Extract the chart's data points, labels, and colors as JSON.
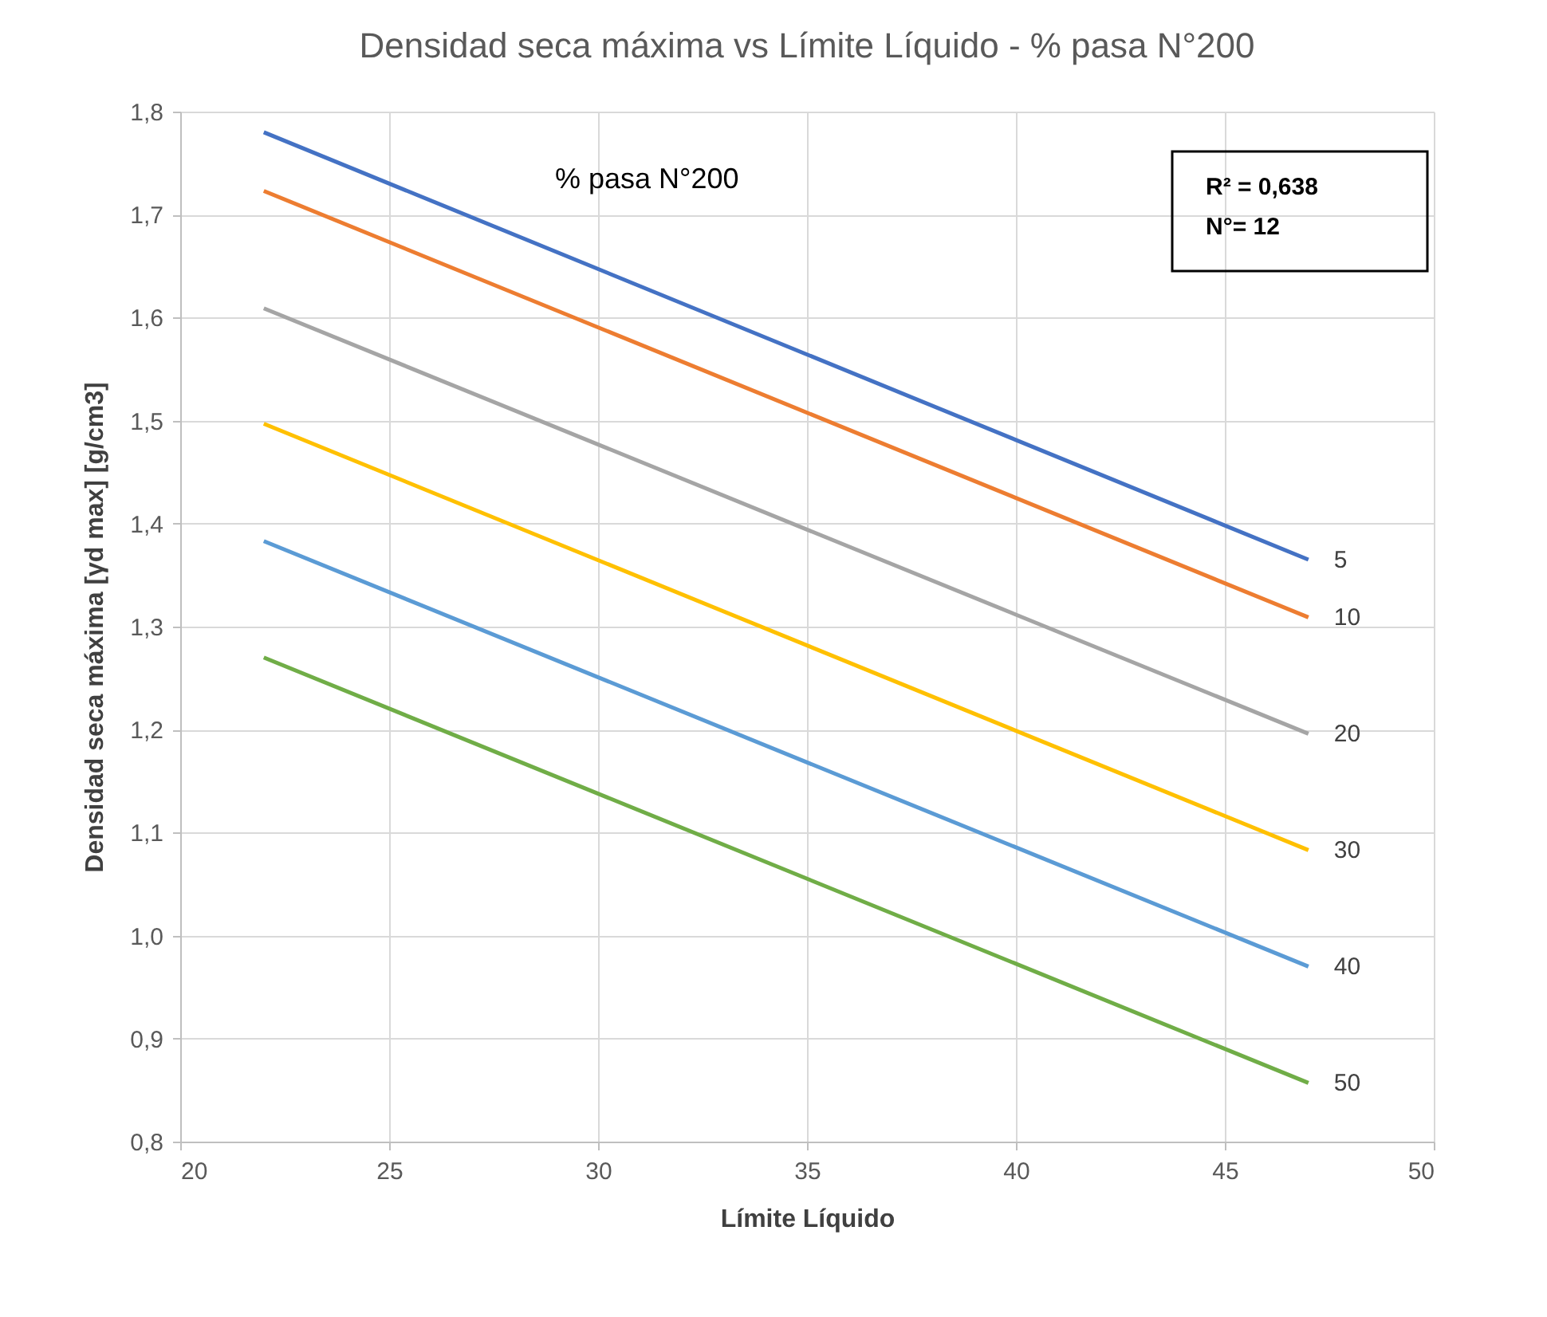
{
  "chart_data": {
    "type": "line",
    "title": "Densidad seca máxima vs Límite Líquido - % pasa N°200",
    "xlabel": "Límite Líquido",
    "ylabel": "Densidad seca máxima [γd max] [g/cm3]",
    "x": [
      22,
      47
    ],
    "series": [
      {
        "name": "5",
        "color": "#4472c4",
        "values": [
          1.78,
          1.365
        ]
      },
      {
        "name": "10",
        "color": "#ed7d31",
        "values": [
          1.723,
          1.309
        ]
      },
      {
        "name": "20",
        "color": "#a5a5a5",
        "values": [
          1.609,
          1.196
        ]
      },
      {
        "name": "30",
        "color": "#ffc000",
        "values": [
          1.497,
          1.083
        ]
      },
      {
        "name": "40",
        "color": "#5b9bd5",
        "values": [
          1.383,
          0.97
        ]
      },
      {
        "name": "50",
        "color": "#70ad47",
        "values": [
          1.27,
          0.857
        ]
      }
    ],
    "xlim": [
      20,
      50
    ],
    "xticks": [
      20,
      25,
      30,
      35,
      40,
      45,
      50
    ],
    "ylim": [
      0.8,
      1.8
    ],
    "yticks": [
      {
        "value": 0.8,
        "label": "0,8"
      },
      {
        "value": 0.9,
        "label": "0,9"
      },
      {
        "value": 1.0,
        "label": "1,0"
      },
      {
        "value": 1.1,
        "label": "1,1"
      },
      {
        "value": 1.2,
        "label": "1,2"
      },
      {
        "value": 1.3,
        "label": "1,3"
      },
      {
        "value": 1.4,
        "label": "1,4"
      },
      {
        "value": 1.5,
        "label": "1,5"
      },
      {
        "value": 1.6,
        "label": "1,6"
      },
      {
        "value": 1.7,
        "label": "1,7"
      },
      {
        "value": 1.8,
        "label": "1,8"
      }
    ],
    "annotations": [
      "% pasa N°200",
      "R² = 0,638",
      "N°= 12"
    ],
    "grid": true,
    "legend": false,
    "marker": "none",
    "line_style": "solid"
  }
}
